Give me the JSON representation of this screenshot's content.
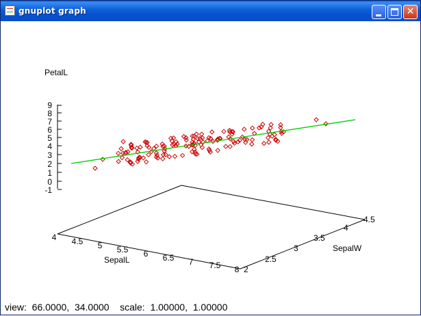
{
  "window": {
    "title": "gnuplot graph",
    "controls": {
      "minimize": "minimize-icon",
      "maximize": "maximize-icon",
      "close": "close-icon"
    }
  },
  "plot": {
    "z_label": "PetalL",
    "x_label": "SepalL",
    "y_label": "SepalW",
    "z_ticks": [
      "9",
      "8",
      "7",
      "6",
      "5",
      "4",
      "3",
      "2",
      "1",
      "0",
      "-1"
    ],
    "x_ticks": [
      "4",
      "4.5",
      "5",
      "5.5",
      "6",
      "6.5",
      "7",
      "7.5",
      "8"
    ],
    "y_ticks": [
      "2",
      "2.5",
      "3",
      "3.5",
      "4",
      "4.5"
    ]
  },
  "status": {
    "text": "view:  66.0000,  34.0000    scale:  1.00000,  1.00000"
  },
  "colors": {
    "points": "#cc0000",
    "fit_line": "#00cc00",
    "axes": "#000000",
    "titlebar": "#0a5fd8"
  }
}
